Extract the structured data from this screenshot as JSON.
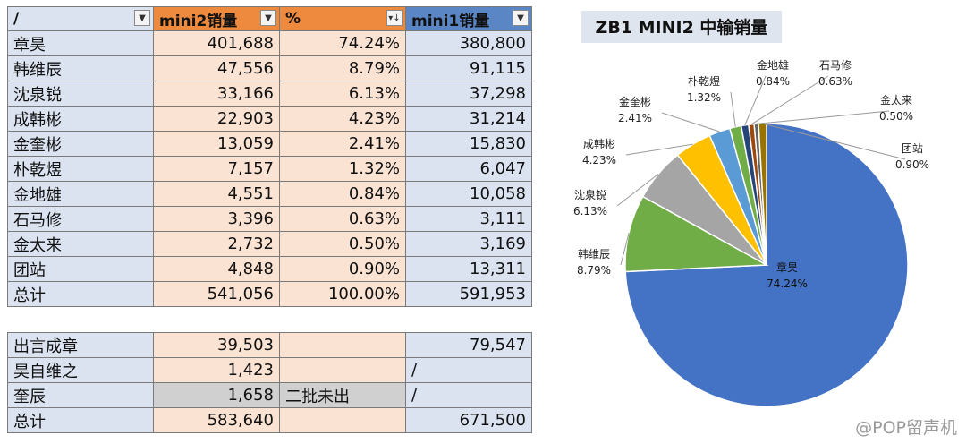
{
  "table": {
    "headers": [
      "/",
      "mini2销量",
      "%",
      "mini1销量"
    ],
    "rows": [
      {
        "name": "章昊",
        "mini2": "401,688",
        "pct": "74.24%",
        "mini1": "380,800"
      },
      {
        "name": "韩维辰",
        "mini2": "47,556",
        "pct": "8.79%",
        "mini1": "91,115"
      },
      {
        "name": "沈泉锐",
        "mini2": "33,166",
        "pct": "6.13%",
        "mini1": "37,298"
      },
      {
        "name": "成韩彬",
        "mini2": "22,903",
        "pct": "4.23%",
        "mini1": "31,214"
      },
      {
        "name": "金奎彬",
        "mini2": "13,059",
        "pct": "2.41%",
        "mini1": "15,830"
      },
      {
        "name": "朴乾煜",
        "mini2": "7,157",
        "pct": "1.32%",
        "mini1": "6,047"
      },
      {
        "name": "金地雄",
        "mini2": "4,551",
        "pct": "0.84%",
        "mini1": "10,058"
      },
      {
        "name": "石马修",
        "mini2": "3,396",
        "pct": "0.63%",
        "mini1": "3,111"
      },
      {
        "name": "金太来",
        "mini2": "2,732",
        "pct": "0.50%",
        "mini1": "3,169"
      },
      {
        "name": "团站",
        "mini2": "4,848",
        "pct": "0.90%",
        "mini1": "13,311"
      },
      {
        "name": "总计",
        "mini2": "541,056",
        "pct": "100.00%",
        "mini1": "591,953"
      }
    ]
  },
  "subtable": {
    "rows": [
      {
        "name": "出言成章",
        "mini2": "39,503",
        "pct": "",
        "mini1": "79,547"
      },
      {
        "name": "昊自维之",
        "mini2": "1,423",
        "pct": "",
        "mini1": "/"
      },
      {
        "name": "奎辰",
        "mini2": "1,658",
        "pct": "二批未出",
        "mini1": "/"
      },
      {
        "name": "总计",
        "mini2": "583,640",
        "pct": "",
        "mini1": "671,500"
      }
    ]
  },
  "watermark": "@POP留声机",
  "chart_data": {
    "type": "pie",
    "title": "ZB1 MINI2 中输销量",
    "slices": [
      {
        "label": "章昊",
        "pct_label": "74.24%",
        "value": 74.24,
        "color": "#4472c4"
      },
      {
        "label": "韩维辰",
        "pct_label": "8.79%",
        "value": 8.79,
        "color": "#70ad47"
      },
      {
        "label": "沈泉锐",
        "pct_label": "6.13%",
        "value": 6.13,
        "color": "#a5a5a5"
      },
      {
        "label": "成韩彬",
        "pct_label": "4.23%",
        "value": 4.23,
        "color": "#ffc000"
      },
      {
        "label": "金奎彬",
        "pct_label": "2.41%",
        "value": 2.41,
        "color": "#5b9bd5"
      },
      {
        "label": "朴乾煜",
        "pct_label": "1.32%",
        "value": 1.32,
        "color": "#70ad47"
      },
      {
        "label": "金地雄",
        "pct_label": "0.84%",
        "value": 0.84,
        "color": "#264478"
      },
      {
        "label": "石马修",
        "pct_label": "0.63%",
        "value": 0.63,
        "color": "#9e480e"
      },
      {
        "label": "金太来",
        "pct_label": "0.50%",
        "value": 0.5,
        "color": "#636363"
      },
      {
        "label": "团站",
        "pct_label": "0.90%",
        "value": 0.9,
        "color": "#997300"
      }
    ]
  }
}
